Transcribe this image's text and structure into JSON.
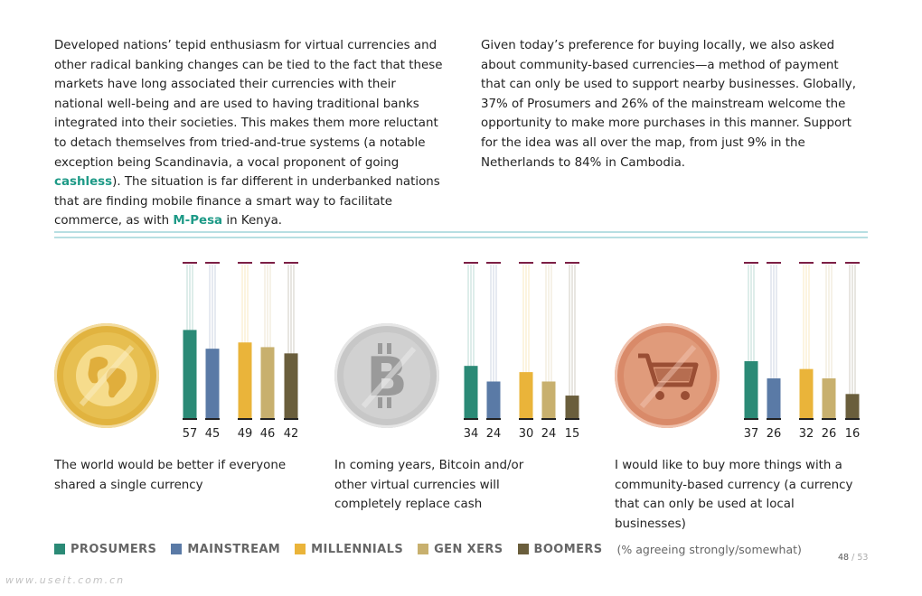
{
  "paragraph_left": {
    "before_cashless": "Developed nations’ tepid enthusiasm for virtual currencies and other radical banking changes can be tied to the fact that these markets have long associated their currencies with their national well-being and are used to having traditional banks integrated into their societies. This makes them more reluctant to detach themselves from tried-and-true systems (a notable exception being Scandinavia, a vocal proponent of going ",
    "cashless": "cashless",
    "middle": "). The situation is far different in underbanked nations that are finding mobile finance a smart way to facilitate commerce, as with ",
    "mpesa": "M-Pesa",
    "end": " in Kenya."
  },
  "paragraph_right": "Given today’s preference for buying locally, we also asked about community-based currencies—a method of payment that can only be used to support nearby businesses. Globally, 37% of Prosumers and 26% of the mainstream welcome the opportunity to make more purchases in this manner. Support for the idea was all over the map, from just 9% in the Netherlands to 84% in Cambodia.",
  "coins": {
    "gold": "globe-icon",
    "silver": "bitcoin-icon",
    "copper": "shopping-cart-icon"
  },
  "chart_data": [
    {
      "type": "bar",
      "title": "The world would be better if everyone shared a single currency",
      "categories": [
        "Prosumers",
        "Mainstream",
        "Millennials",
        "Gen Xers",
        "Boomers"
      ],
      "values": [
        57,
        45,
        49,
        46,
        42
      ],
      "ylim": [
        0,
        100
      ]
    },
    {
      "type": "bar",
      "title": "In coming years, Bitcoin and/or other virtual currencies will completely replace cash",
      "categories": [
        "Prosumers",
        "Mainstream",
        "Millennials",
        "Gen Xers",
        "Boomers"
      ],
      "values": [
        34,
        24,
        30,
        24,
        15
      ],
      "ylim": [
        0,
        100
      ]
    },
    {
      "type": "bar",
      "title": "I would like to buy more things with a community-based currency (a currency that can only be used at local businesses)",
      "categories": [
        "Prosumers",
        "Mainstream",
        "Millennials",
        "Gen Xers",
        "Boomers"
      ],
      "values": [
        37,
        26,
        32,
        26,
        16
      ],
      "ylim": [
        0,
        100
      ]
    }
  ],
  "colors": {
    "prosumers": "#2b8a76",
    "mainstream": "#5a7aa6",
    "millennials": "#eab43a",
    "genxers": "#c8b06e",
    "boomers": "#6a5e3c",
    "cap": "#7c1f45",
    "highlight": "#1e9a87"
  },
  "legend": {
    "items": [
      "PROSUMERS",
      "MAINSTREAM",
      "MILLENNIALS",
      "GEN XERS",
      "BOOMERS"
    ],
    "note": "(% agreeing strongly/somewhat)"
  },
  "page": {
    "current": "48",
    "sep": "/",
    "total": "53"
  },
  "watermark": "www.useit.com.cn"
}
